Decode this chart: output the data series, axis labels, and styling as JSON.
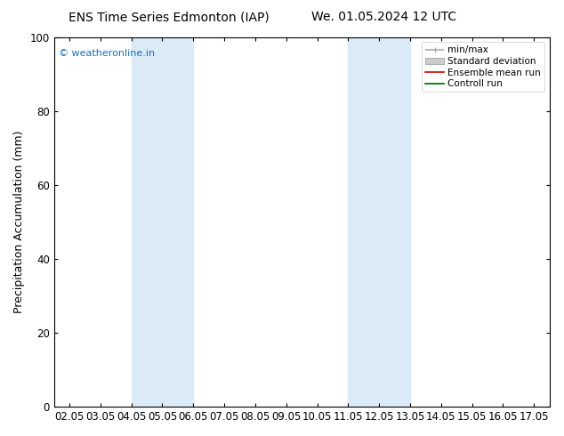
{
  "title_left": "ENS Time Series Edmonton (IAP)",
  "title_right": "We. 01.05.2024 12 UTC",
  "ylabel": "Precipitation Accumulation (mm)",
  "watermark": "© weatheronline.in",
  "x_labels": [
    "02.05",
    "03.05",
    "04.05",
    "05.05",
    "06.05",
    "07.05",
    "08.05",
    "09.05",
    "10.05",
    "11.05",
    "12.05",
    "13.05",
    "14.05",
    "15.05",
    "16.05",
    "17.05"
  ],
  "x_tick_positions": [
    0,
    1,
    2,
    3,
    4,
    5,
    6,
    7,
    8,
    9,
    10,
    11,
    12,
    13,
    14,
    15
  ],
  "ylim": [
    0,
    100
  ],
  "yticks": [
    0,
    20,
    40,
    60,
    80,
    100
  ],
  "shaded_bands": [
    {
      "x_start": 2,
      "x_end": 4,
      "color": "#daeaf7"
    },
    {
      "x_start": 9,
      "x_end": 11,
      "color": "#daeaf7"
    }
  ],
  "legend_entries": [
    {
      "label": "min/max",
      "color": "#aaaaaa",
      "lw": 1.2,
      "type": "line_with_caps"
    },
    {
      "label": "Standard deviation",
      "color": "#cccccc",
      "lw": 8,
      "type": "patch"
    },
    {
      "label": "Ensemble mean run",
      "color": "#cc0000",
      "lw": 1.2,
      "type": "line"
    },
    {
      "label": "Controll run",
      "color": "#006400",
      "lw": 1.2,
      "type": "line"
    }
  ],
  "background_color": "#ffffff",
  "plot_bg_color": "#ffffff",
  "watermark_color": "#1a6eb5",
  "title_fontsize": 10,
  "axis_label_fontsize": 9,
  "tick_fontsize": 8.5,
  "legend_fontsize": 7.5
}
